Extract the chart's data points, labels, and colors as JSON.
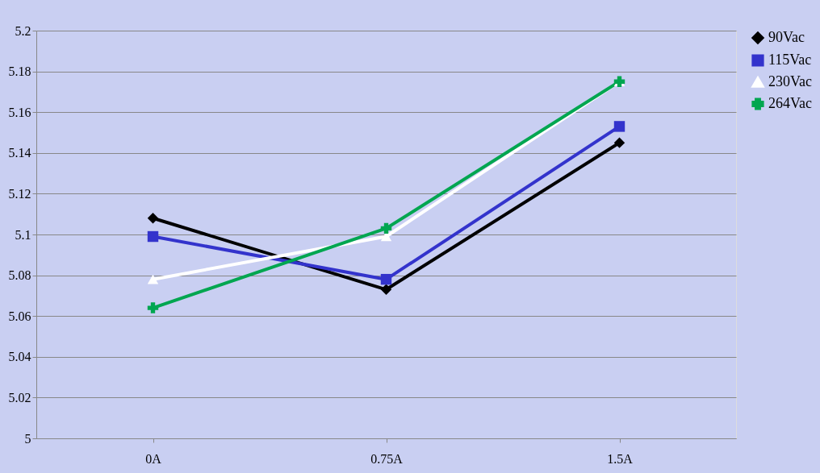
{
  "chart_data": {
    "type": "line",
    "categories": [
      "0A",
      "0.75A",
      "1.5A"
    ],
    "series": [
      {
        "name": "90Vac",
        "color": "#000000",
        "marker": "diamond",
        "values": [
          5.108,
          5.073,
          5.145
        ]
      },
      {
        "name": "115Vac",
        "color": "#3333cc",
        "marker": "square",
        "values": [
          5.099,
          5.078,
          5.153
        ]
      },
      {
        "name": "230Vac",
        "color": "#ffffff",
        "marker": "triangle",
        "values": [
          5.078,
          5.099,
          5.175
        ]
      },
      {
        "name": "264Vac",
        "color": "#00a650",
        "marker": "cross",
        "values": [
          5.064,
          5.103,
          5.175
        ]
      }
    ],
    "ylim": [
      5,
      5.2
    ],
    "yticks": [
      5,
      5.02,
      5.04,
      5.06,
      5.08,
      5.1,
      5.12,
      5.14,
      5.16,
      5.18,
      5.2
    ],
    "grid": "y",
    "legend": "right",
    "line_style": "solid"
  }
}
